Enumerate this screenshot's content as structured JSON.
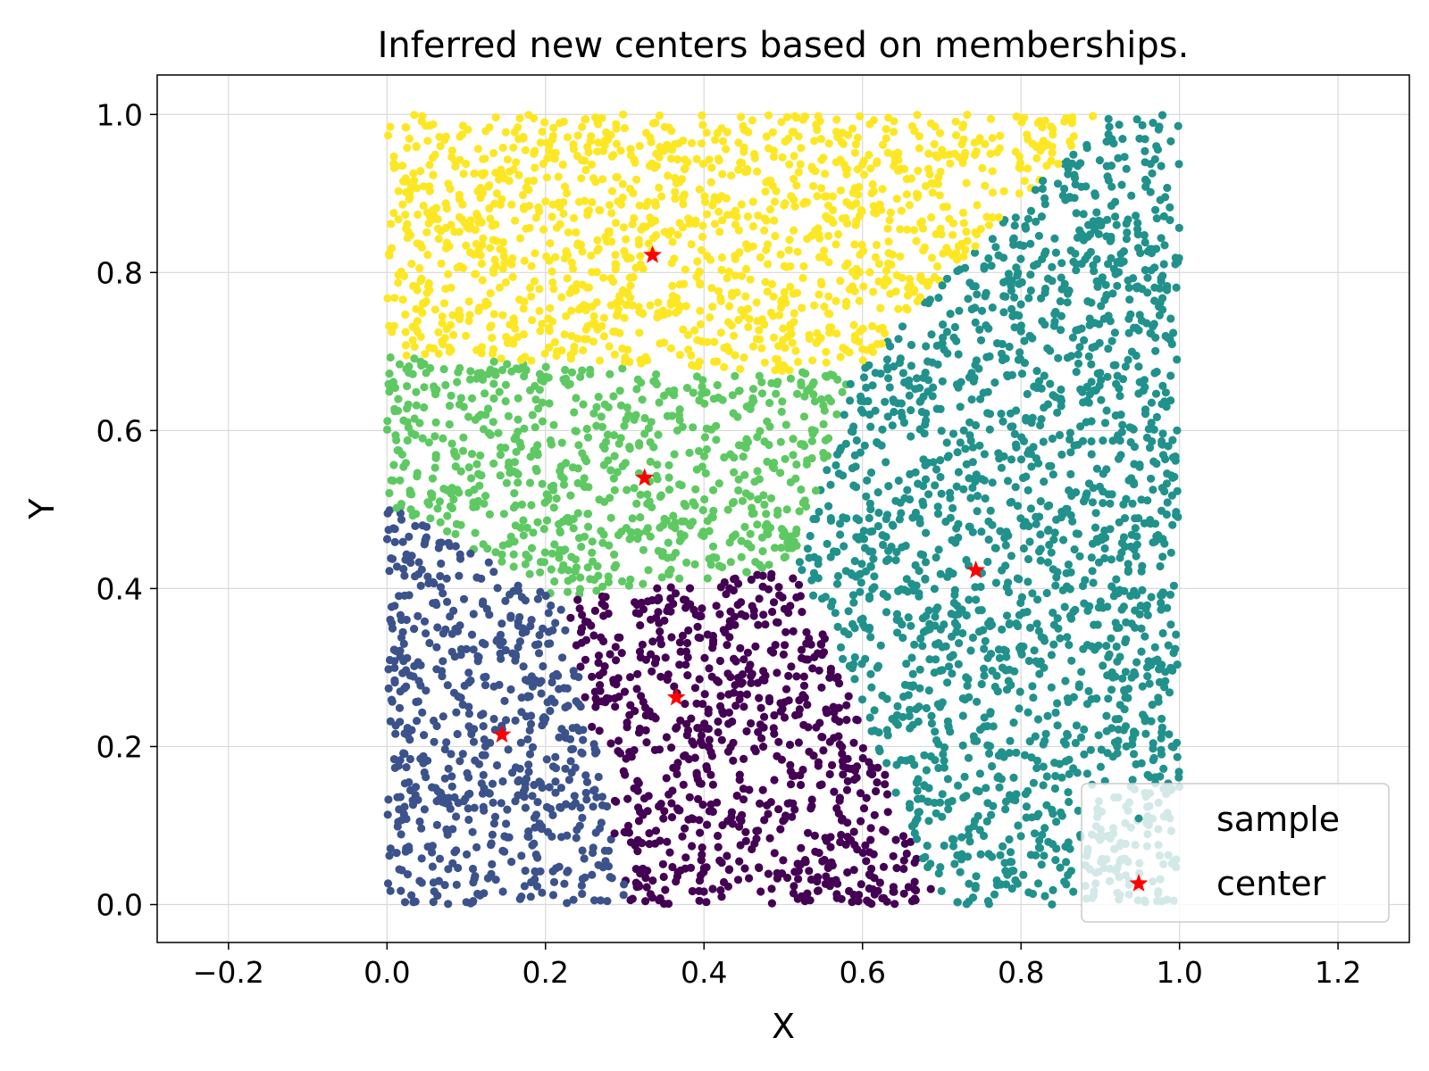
{
  "chart_data": {
    "type": "scatter",
    "title": "Inferred new centers based on memberships.",
    "xlabel": "X",
    "ylabel": "Y",
    "xlim": [
      -0.29,
      1.29
    ],
    "ylim": [
      -0.048,
      1.05
    ],
    "xticks": [
      -0.2,
      0.0,
      0.2,
      0.4,
      0.6,
      0.8,
      1.0,
      1.2
    ],
    "xtick_labels": [
      "−0.2",
      "0.0",
      "0.2",
      "0.4",
      "0.6",
      "0.8",
      "1.0",
      "1.2"
    ],
    "yticks": [
      0.0,
      0.2,
      0.4,
      0.6,
      0.8,
      1.0
    ],
    "ytick_labels": [
      "0.0",
      "0.2",
      "0.4",
      "0.6",
      "0.8",
      "1.0"
    ],
    "grid": true,
    "legend_position": "lower-right",
    "series": [
      {
        "name": "sample",
        "marker": "circle",
        "note_distribution": "approximately 6000 points uniformly spread over the unit square [0,1]x[0,1], colored by cluster membership",
        "clusters": [
          {
            "cluster": 1,
            "color": "#440154"
          },
          {
            "cluster": 2,
            "color": "#3b528b"
          },
          {
            "cluster": 3,
            "color": "#21918c"
          },
          {
            "cluster": 4,
            "color": "#5ec962"
          },
          {
            "cluster": 5,
            "color": "#fde725"
          }
        ]
      },
      {
        "name": "center",
        "marker": "star",
        "color": "#ff0000",
        "points": [
          {
            "x": 0.335,
            "y": 0.822,
            "cluster": 5
          },
          {
            "x": 0.325,
            "y": 0.54,
            "cluster": 4
          },
          {
            "x": 0.743,
            "y": 0.423,
            "cluster": 3
          },
          {
            "x": 0.365,
            "y": 0.262,
            "cluster": 1
          },
          {
            "x": 0.145,
            "y": 0.215,
            "cluster": 2
          }
        ]
      }
    ]
  }
}
